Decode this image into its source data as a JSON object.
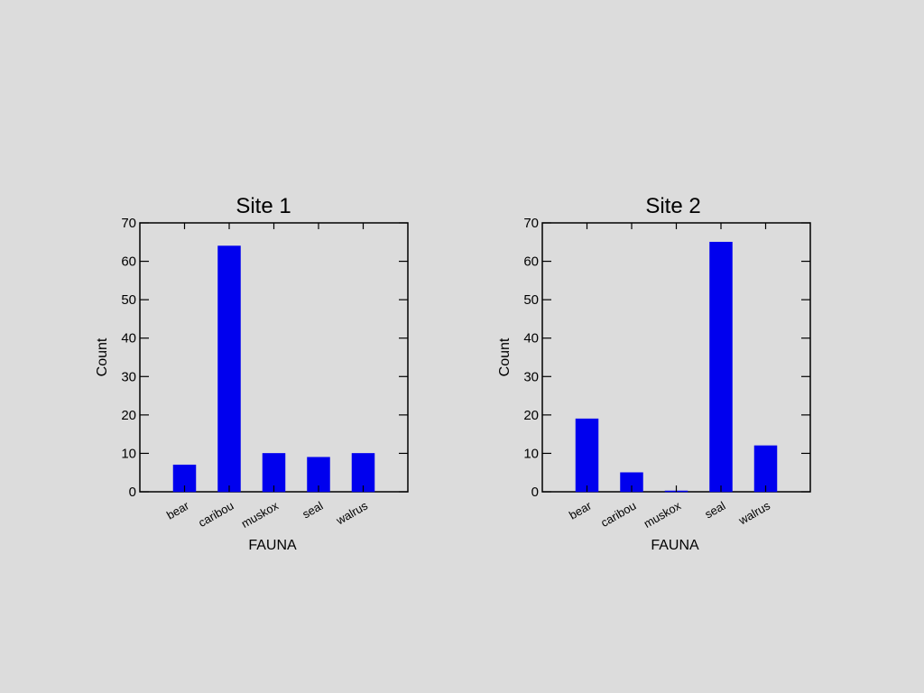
{
  "chart_data": [
    {
      "type": "bar",
      "title": "Site 1",
      "xlabel": "FAUNA",
      "ylabel": "Count",
      "categories": [
        "bear",
        "caribou",
        "muskox",
        "seal",
        "walrus"
      ],
      "values": [
        7,
        64,
        10,
        9,
        10
      ],
      "ylim": [
        0,
        70
      ],
      "yticks": [
        0,
        10,
        20,
        30,
        40,
        50,
        60,
        70
      ],
      "bar_color": "#0000ee",
      "grid": false
    },
    {
      "type": "bar",
      "title": "Site 2",
      "xlabel": "FAUNA",
      "ylabel": "Count",
      "categories": [
        "bear",
        "caribou",
        "muskox",
        "seal",
        "walrus"
      ],
      "values": [
        19,
        5,
        0,
        65,
        12
      ],
      "ylim": [
        0,
        70
      ],
      "yticks": [
        0,
        10,
        20,
        30,
        40,
        50,
        60,
        70
      ],
      "bar_color": "#0000ee",
      "grid": false
    }
  ]
}
